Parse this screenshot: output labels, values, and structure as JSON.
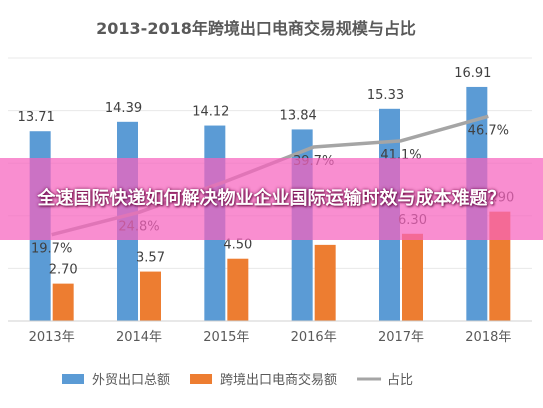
{
  "chart_data": {
    "type": "bar",
    "title": "2013-2018年跨境出口电商交易规模与占比",
    "categories": [
      "2013年",
      "2014年",
      "2015年",
      "2016年",
      "2017年",
      "2018年"
    ],
    "series": [
      {
        "name": "外贸出口总额",
        "kind": "bar",
        "color": "#5B9BD5",
        "values": [
          13.71,
          14.39,
          14.12,
          13.84,
          15.33,
          16.91
        ],
        "labels": [
          "13.71",
          "14.39",
          "14.12",
          "13.84",
          "15.33",
          "16.91"
        ]
      },
      {
        "name": "跨境出口电商交易额",
        "kind": "bar",
        "color": "#ED7D31",
        "values": [
          2.7,
          3.57,
          4.5,
          5.5,
          6.3,
          7.9
        ],
        "labels": [
          "2.70",
          "3.57",
          "4.50",
          "",
          "6.30",
          "7.90"
        ]
      },
      {
        "name": "占比",
        "kind": "line",
        "color": "#A5A5A5",
        "values": [
          19.7,
          24.8,
          31.9,
          39.7,
          41.1,
          46.7
        ],
        "labels": [
          "19.7%",
          "24.8%",
          "",
          "39.7%",
          "41.1%",
          "46.7%"
        ]
      }
    ],
    "ylim": [
      0,
      19
    ],
    "line_ylim": [
      0,
      60
    ],
    "grid": true,
    "legend": "bottom"
  },
  "overlay": {
    "text": "全速国际快递如何解决物业企业国际运输时效与成本难题？"
  }
}
